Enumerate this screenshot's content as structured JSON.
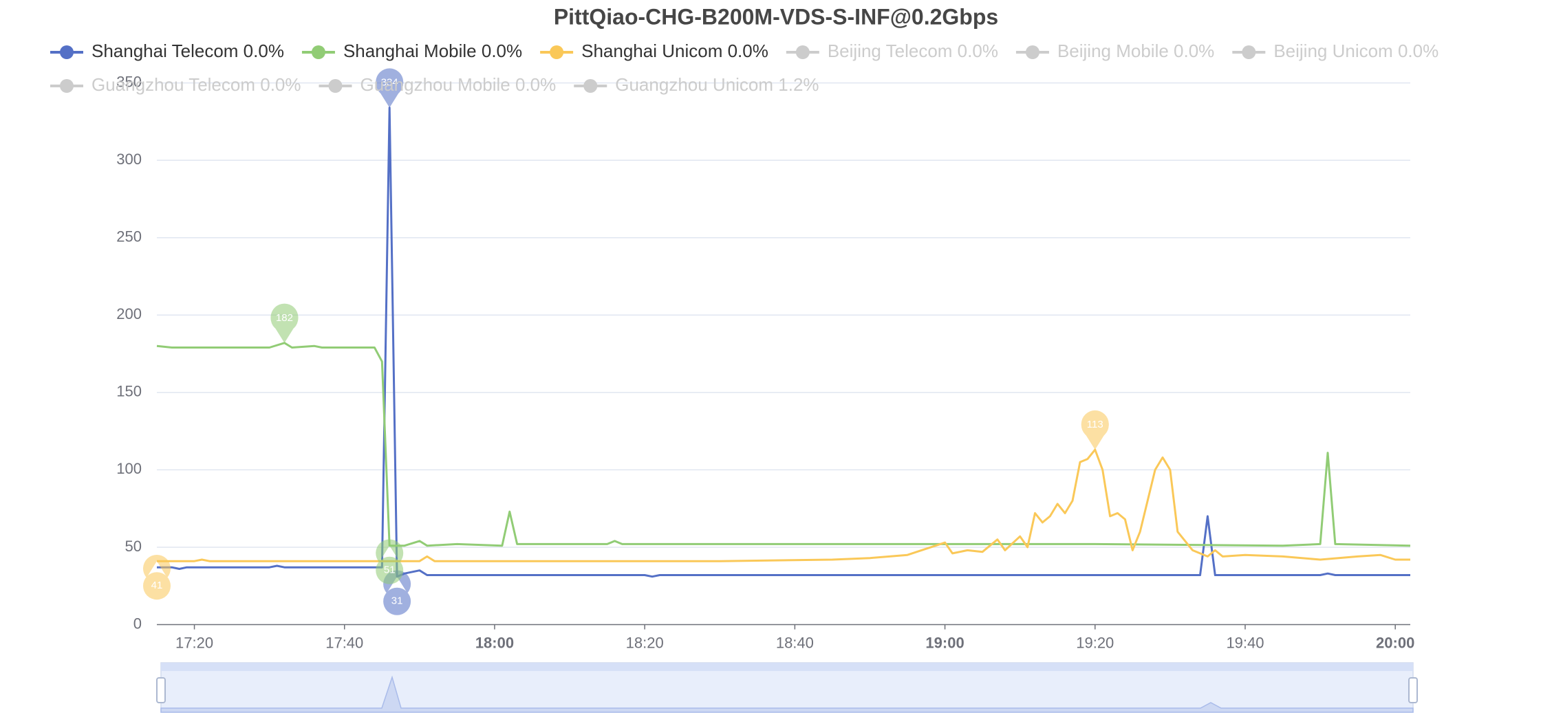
{
  "chart_data": {
    "type": "line",
    "title": "PittQiao-CHG-B200M-VDS-S-INF@0.2Gbps",
    "xlim": [
      "17:15",
      "20:02"
    ],
    "xticks": [
      "17:20",
      "17:40",
      "18:00",
      "18:20",
      "18:40",
      "19:00",
      "19:20",
      "19:40",
      "20:00"
    ],
    "ylim": [
      0,
      350
    ],
    "yticks": [
      0,
      50,
      100,
      150,
      200,
      250,
      300,
      350
    ],
    "grid": true,
    "series": [
      {
        "name": "Shanghai Telecom 0.0%",
        "color": "#5470c6",
        "x": [
          "17:15",
          "17:17",
          "17:18",
          "17:19",
          "17:30",
          "17:31",
          "17:32",
          "17:45",
          "17:46",
          "17:47",
          "17:48",
          "17:50",
          "17:51",
          "18:20",
          "18:21",
          "18:22",
          "19:00",
          "19:20",
          "19:34",
          "19:35",
          "19:36",
          "19:50",
          "19:51",
          "19:52",
          "20:02"
        ],
        "values": [
          37,
          37,
          36,
          37,
          37,
          38,
          37,
          37,
          334,
          31,
          33,
          35,
          32,
          32,
          31,
          32,
          32,
          32,
          32,
          70,
          32,
          32,
          33,
          32,
          32
        ],
        "mark_points": [
          {
            "kind": "max",
            "x": "17:46",
            "value": 334
          },
          {
            "kind": "min",
            "x": "17:47",
            "value": 31
          }
        ]
      },
      {
        "name": "Shanghai Mobile 0.0%",
        "color": "#91cc75",
        "x": [
          "17:15",
          "17:17",
          "17:30",
          "17:32",
          "17:33",
          "17:36",
          "17:37",
          "17:44",
          "17:45",
          "17:46",
          "17:48",
          "17:50",
          "17:51",
          "17:55",
          "18:01",
          "18:02",
          "18:03",
          "18:15",
          "18:16",
          "18:17",
          "18:30",
          "19:00",
          "19:20",
          "19:45",
          "19:50",
          "19:51",
          "19:52",
          "20:02"
        ],
        "values": [
          180,
          179,
          179,
          182,
          179,
          180,
          179,
          179,
          170,
          51,
          51,
          54,
          51,
          52,
          51,
          73,
          52,
          52,
          54,
          52,
          52,
          52,
          52,
          51,
          52,
          111,
          52,
          51
        ],
        "mark_points": [
          {
            "kind": "max",
            "x": "17:32",
            "value": 182
          },
          {
            "kind": "min",
            "x": "17:46",
            "value": 51
          }
        ]
      },
      {
        "name": "Shanghai Unicom 0.0%",
        "color": "#fac858",
        "x": [
          "17:15",
          "17:20",
          "17:21",
          "17:22",
          "17:50",
          "17:51",
          "17:52",
          "18:30",
          "18:45",
          "18:50",
          "18:55",
          "19:00",
          "19:01",
          "19:03",
          "19:05",
          "19:07",
          "19:08",
          "19:10",
          "19:11",
          "19:12",
          "19:13",
          "19:14",
          "19:15",
          "19:16",
          "19:17",
          "19:18",
          "19:19",
          "19:20",
          "19:21",
          "19:22",
          "19:23",
          "19:24",
          "19:25",
          "19:26",
          "19:28",
          "19:29",
          "19:30",
          "19:31",
          "19:33",
          "19:35",
          "19:36",
          "19:37",
          "19:40",
          "19:45",
          "19:50",
          "19:55",
          "19:58",
          "20:00",
          "20:02"
        ],
        "values": [
          41,
          41,
          42,
          41,
          41,
          44,
          41,
          41,
          42,
          43,
          45,
          53,
          46,
          48,
          47,
          55,
          48,
          57,
          50,
          72,
          66,
          70,
          78,
          72,
          80,
          105,
          107,
          113,
          100,
          70,
          72,
          68,
          48,
          60,
          100,
          108,
          100,
          60,
          48,
          44,
          48,
          44,
          45,
          44,
          42,
          44,
          45,
          42,
          42
        ],
        "mark_points": [
          {
            "kind": "max",
            "x": "19:20",
            "value": 113
          },
          {
            "kind": "min",
            "x": "17:15",
            "value": 41
          }
        ]
      }
    ],
    "hidden_series": [
      "Beijing Telecom 0.0%",
      "Beijing Mobile 0.0%",
      "Beijing Unicom 0.0%",
      "Guangzhou Telecom 0.0%",
      "Guangzhou Mobile 0.0%",
      "Guangzhou Unicom 1.2%"
    ],
    "hidden_color": "#cccccc"
  }
}
